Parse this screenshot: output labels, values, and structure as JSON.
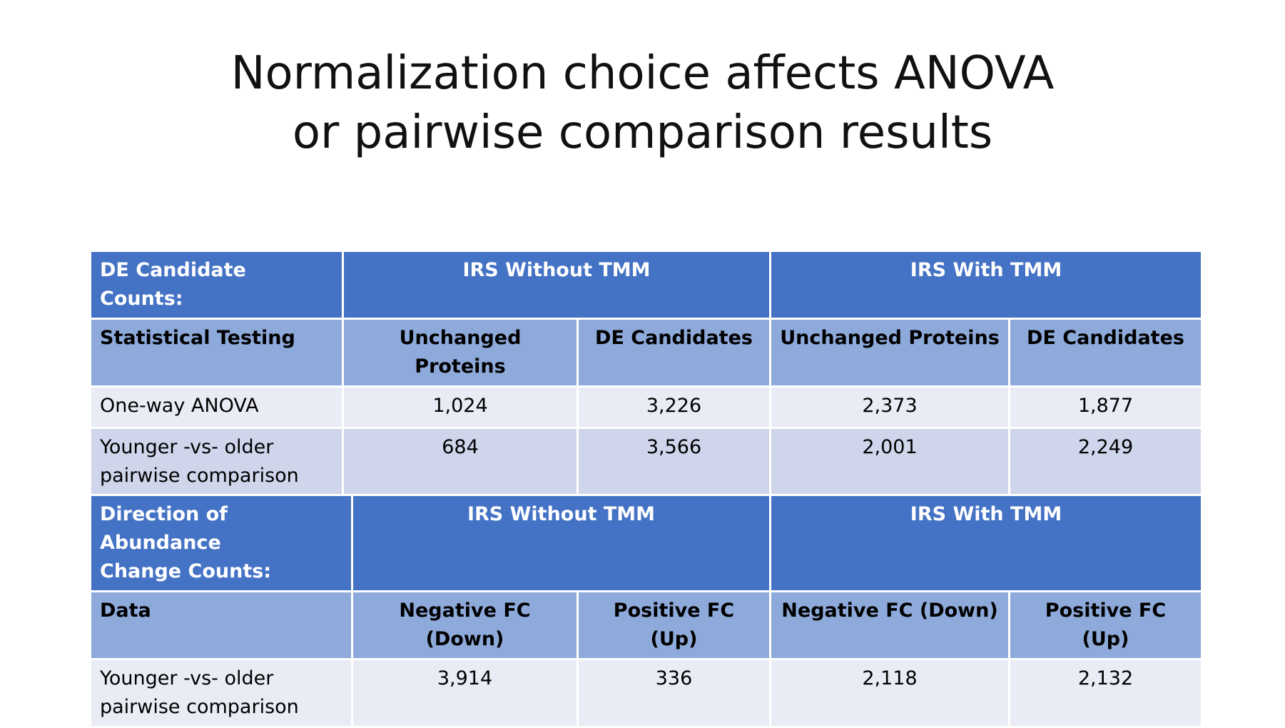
{
  "title": {
    "line1": "Normalization choice affects ANOVA",
    "line2": "or pairwise comparison results"
  },
  "table1": {
    "corner_label": "DE Candidate Counts:",
    "group1": "IRS Without TMM",
    "group2": "IRS With TMM",
    "sub_headers": [
      "Statistical Testing",
      "Unchanged Proteins",
      "DE Candidates",
      "Unchanged Proteins",
      "DE Candidates"
    ],
    "rows": [
      {
        "label": "One-way ANOVA",
        "values": [
          "1,024",
          "3,226",
          "2,373",
          "1,877"
        ]
      },
      {
        "label_line1": "Younger -vs- older",
        "label_line2": "pairwise comparison",
        "values": [
          "684",
          "3,566",
          "2,001",
          "2,249"
        ]
      }
    ]
  },
  "table2": {
    "corner_label_line1": "Direction of Abundance",
    "corner_label_line2": "Change Counts:",
    "group1": "IRS Without TMM",
    "group2": "IRS With TMM",
    "sub_headers": [
      "Data",
      "Negative FC (Down)",
      "Positive FC (Up)",
      "Negative FC (Down)",
      "Positive FC (Up)"
    ],
    "rows": [
      {
        "label_line1": "Younger -vs- older",
        "label_line2": "pairwise comparison",
        "values": [
          "3,914",
          "336",
          "2,118",
          "2,132"
        ]
      }
    ]
  },
  "colors": {
    "header_dark": "#4472c4",
    "header_light": "#8eaadb",
    "row_light": "#e9ecf5",
    "row_mid": "#cfd5ea"
  }
}
